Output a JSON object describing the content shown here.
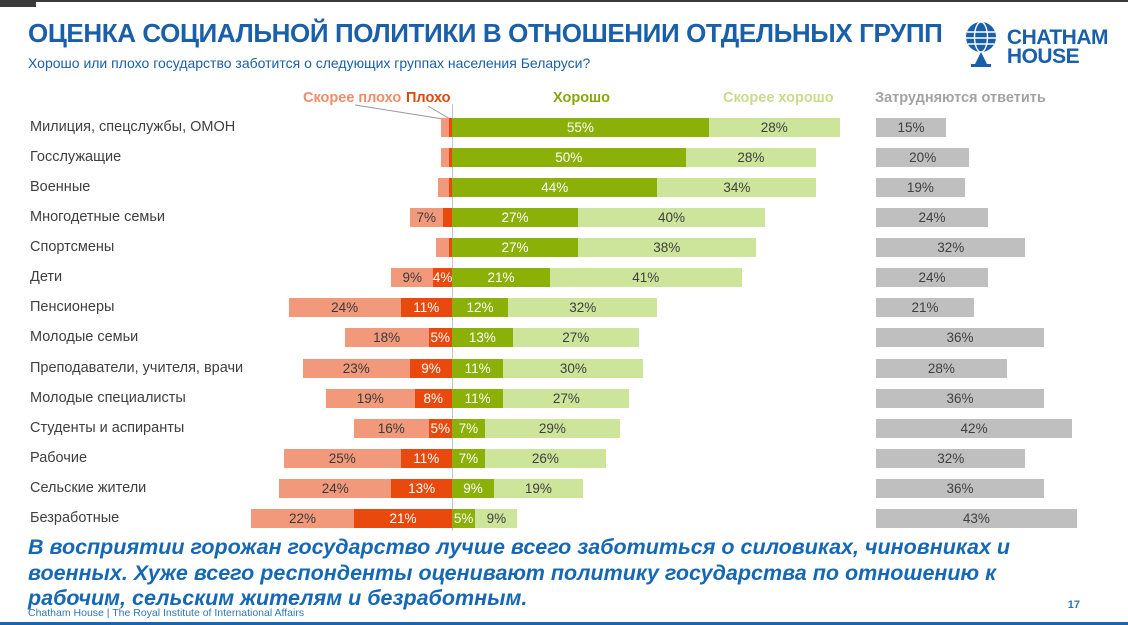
{
  "header": {
    "title": "ОЦЕНКА СОЦИАЛЬНОЙ ПОЛИТИКИ В ОТНОШЕНИИ ОТДЕЛЬНЫХ ГРУПП",
    "subtitle": "Хорошо или плохо государство заботится о следующих группах населения Беларуси?",
    "logo_line1": "CHATHAM",
    "logo_line2": "HOUSE"
  },
  "footer": {
    "takeaway": "В восприятии горожан государство лучше всего заботиться о силовиках, чиновниках и военных. Хуже всего респонденты оценивают политику государства по отношению к рабочим, сельским жителям и безработным.",
    "attribution": "Chatham House  |  The Royal Institute of International Affairs",
    "page_number": "17"
  },
  "colors": {
    "brand_blue": "#1A5FA9",
    "takeaway_blue": "#1568B5",
    "axis_line": "#C8C8C8",
    "category_text": "#3F3F3F"
  },
  "chart_data": {
    "type": "bar",
    "subtype": "diverging-stacked-horizontal",
    "units": "%",
    "title": "ОЦЕНКА СОЦИАЛЬНОЙ ПОЛИТИКИ В ОТНОШЕНИИ ОТДЕЛЬНЫХ ГРУПП",
    "question": "Хорошо или плохо государство заботится о следующих группах населения Беларуси?",
    "legend_position": "top",
    "legend": [
      {
        "label": "Скорее плохо",
        "color": "#F28C68"
      },
      {
        "label": "Плохо",
        "color": "#E0470B"
      },
      {
        "label": "Хорошо",
        "color": "#84A90A"
      },
      {
        "label": "Скорее хорошо",
        "color": "#C5DD8A"
      },
      {
        "label": "Затрудняются ответить",
        "color": "#A3A3A3"
      }
    ],
    "categories": [
      "Милиция, спецслужбы, ОМОН",
      "Госслужащие",
      "Военные",
      "Многодетные семьи",
      "Спортсмены",
      "Дети",
      "Пенсионеры",
      "Молодые семьи",
      "Преподаватели, учителя, врачи",
      "Молодые специалисты",
      "Студенты и аспиранты",
      "Рабочие",
      "Сельские жители",
      "Безработные"
    ],
    "series": [
      {
        "name": "Скорее плохо",
        "color": "#F2997B",
        "text_color": "#3A3A3A",
        "values": [
          1.7,
          1.7,
          2.5,
          7,
          2.9,
          9,
          24,
          18,
          23,
          19,
          16,
          25,
          24,
          22
        ],
        "labels": [
          "",
          "",
          "",
          "7%",
          "",
          "9%",
          "24%",
          "18%",
          "23%",
          "19%",
          "16%",
          "25%",
          "24%",
          "22%"
        ]
      },
      {
        "name": "Плохо",
        "color": "#E9490D",
        "text_color": "#FFFFFF",
        "values": [
          0.6,
          0.6,
          0.6,
          2,
          0.6,
          4,
          11,
          5,
          9,
          8,
          5,
          11,
          13,
          21
        ],
        "labels": [
          "",
          "",
          "",
          "",
          "",
          "4%",
          "11%",
          "5%",
          "9%",
          "8%",
          "5%",
          "11%",
          "13%",
          "21%"
        ]
      },
      {
        "name": "Хорошо",
        "color": "#8BB108",
        "text_color": "#FFFFFF",
        "values": [
          55,
          50,
          44,
          27,
          27,
          21,
          12,
          13,
          11,
          11,
          7,
          7,
          9,
          5
        ],
        "labels": [
          "55%",
          "50%",
          "44%",
          "27%",
          "27%",
          "21%",
          "12%",
          "13%",
          "11%",
          "11%",
          "7%",
          "7%",
          "9%",
          "5%"
        ]
      },
      {
        "name": "Скорее хорошо",
        "color": "#CDE49B",
        "text_color": "#3F3F3F",
        "values": [
          28,
          28,
          34,
          40,
          38,
          41,
          32,
          27,
          30,
          27,
          29,
          26,
          19,
          9
        ],
        "labels": [
          "28%",
          "28%",
          "34%",
          "40%",
          "38%",
          "41%",
          "32%",
          "27%",
          "30%",
          "27%",
          "29%",
          "26%",
          "19%",
          "9%"
        ]
      },
      {
        "name": "Затрудняются ответить",
        "color": "#BFBFBF",
        "text_color": "#3F3F3F",
        "values": [
          15,
          20,
          19,
          24,
          32,
          24,
          21,
          36,
          28,
          36,
          42,
          32,
          36,
          43
        ],
        "labels": [
          "15%",
          "20%",
          "19%",
          "24%",
          "32%",
          "24%",
          "21%",
          "36%",
          "28%",
          "36%",
          "42%",
          "32%",
          "36%",
          "43%"
        ]
      }
    ]
  }
}
